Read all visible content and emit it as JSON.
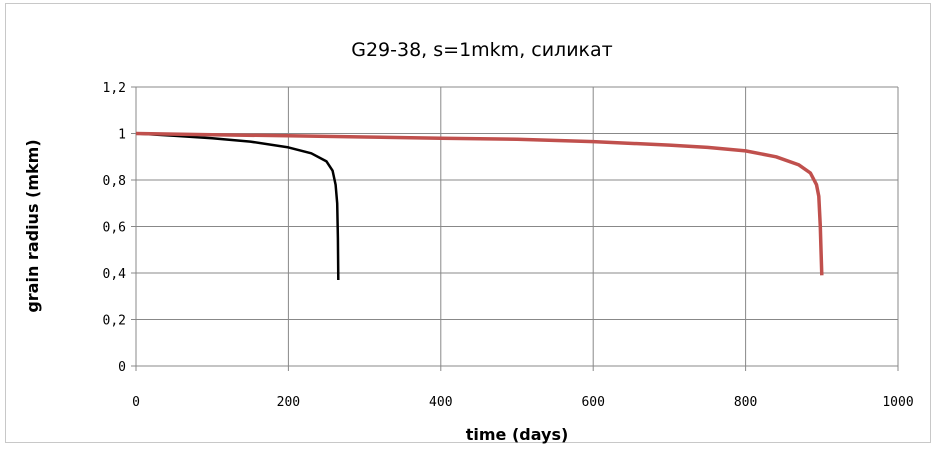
{
  "chart_data": {
    "type": "line",
    "title": "G29-38, s=1mkm, силикат",
    "xlabel": "time (days)",
    "ylabel": "grain radius (mkm)",
    "xlim": [
      0,
      1000
    ],
    "ylim": [
      0,
      1.2
    ],
    "x_ticks": [
      "0",
      "200",
      "400",
      "600",
      "800",
      "1000"
    ],
    "y_ticks": [
      "0",
      "0,2",
      "0,4",
      "0,6",
      "0,8",
      "1",
      "1,2"
    ],
    "grid": true,
    "legend": "none",
    "series": [
      {
        "color": "#000000",
        "x": [
          0,
          50,
          100,
          150,
          200,
          230,
          250,
          258,
          262,
          264,
          265,
          265.5
        ],
        "y": [
          1.0,
          0.99,
          0.98,
          0.965,
          0.94,
          0.915,
          0.88,
          0.84,
          0.78,
          0.7,
          0.55,
          0.37
        ]
      },
      {
        "color": "#c0504d",
        "x": [
          0,
          100,
          200,
          300,
          400,
          500,
          600,
          700,
          750,
          800,
          840,
          870,
          885,
          893,
          896,
          898,
          899,
          900
        ],
        "y": [
          1.0,
          0.995,
          0.99,
          0.985,
          0.98,
          0.975,
          0.965,
          0.95,
          0.94,
          0.925,
          0.9,
          0.865,
          0.83,
          0.78,
          0.73,
          0.6,
          0.5,
          0.39
        ]
      }
    ]
  }
}
